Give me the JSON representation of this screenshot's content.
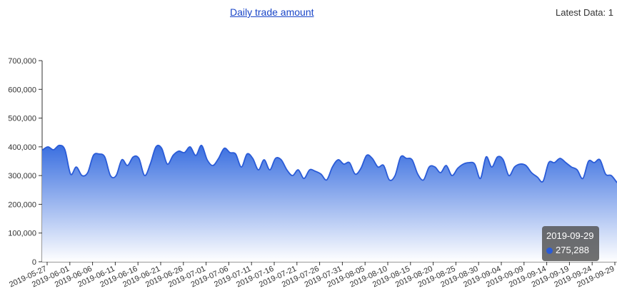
{
  "header": {
    "title": "Daily trade amount",
    "latest_label": "Latest Data: 1"
  },
  "tooltip": {
    "date": "2019-09-29",
    "value": "275,288"
  },
  "colors": {
    "line": "#2a5bd7",
    "fill_top": "#3a6fe0",
    "fill_bottom": "#ffffff",
    "axis": "#333333",
    "tooltip_bg": "#555555"
  },
  "chart_data": {
    "type": "area",
    "title": "Daily trade amount",
    "xlabel": "",
    "ylabel": "",
    "ylim": [
      0,
      700000
    ],
    "yticks": [
      0,
      100000,
      200000,
      300000,
      400000,
      500000,
      600000,
      700000
    ],
    "ytick_labels": [
      "0",
      "100,000",
      "200,000",
      "300,000",
      "400,000",
      "500,000",
      "600,000",
      "700,000"
    ],
    "xtick_labels": [
      "2019-05-27",
      "2019-06-01",
      "2019-06-06",
      "2019-06-11",
      "2019-06-16",
      "2019-06-21",
      "2019-06-26",
      "2019-07-01",
      "2019-07-06",
      "2019-07-11",
      "2019-07-16",
      "2019-07-21",
      "2019-07-26",
      "2019-07-31",
      "2019-08-05",
      "2019-08-10",
      "2019-08-15",
      "2019-08-20",
      "2019-08-25",
      "2019-08-30",
      "2019-09-04",
      "2019-09-09",
      "2019-09-14",
      "2019-09-19",
      "2019-09-24",
      "2019-09-29"
    ],
    "grid": false,
    "series": [
      {
        "values": [
          388000,
          400000,
          390000,
          405000,
          390000,
          305000,
          330000,
          300000,
          310000,
          370000,
          375000,
          365000,
          300000,
          300000,
          355000,
          335000,
          365000,
          360000,
          300000,
          340000,
          400000,
          395000,
          340000,
          370000,
          385000,
          380000,
          400000,
          370000,
          405000,
          355000,
          335000,
          360000,
          395000,
          380000,
          375000,
          330000,
          375000,
          360000,
          320000,
          355000,
          320000,
          360000,
          355000,
          320000,
          300000,
          320000,
          290000,
          320000,
          315000,
          305000,
          285000,
          330000,
          355000,
          340000,
          345000,
          305000,
          325000,
          370000,
          360000,
          330000,
          335000,
          285000,
          300000,
          365000,
          360000,
          355000,
          305000,
          285000,
          330000,
          330000,
          310000,
          335000,
          300000,
          325000,
          340000,
          345000,
          340000,
          290000,
          365000,
          330000,
          365000,
          355000,
          300000,
          330000,
          340000,
          335000,
          310000,
          295000,
          280000,
          345000,
          345000,
          360000,
          345000,
          330000,
          320000,
          290000,
          350000,
          345000,
          355000,
          305000,
          300000,
          275288
        ]
      }
    ]
  }
}
